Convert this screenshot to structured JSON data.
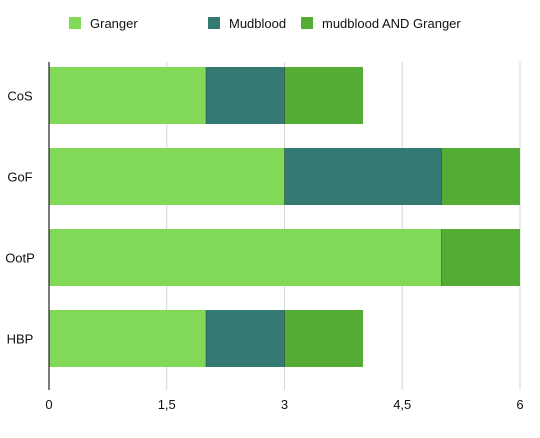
{
  "chart_data": {
    "type": "bar",
    "orientation": "horizontal",
    "stacked": true,
    "categories": [
      "CoS",
      "GoF",
      "OotP",
      "HBP"
    ],
    "series": [
      {
        "name": "Granger",
        "color": "#82d957",
        "values": [
          2,
          3,
          5,
          2
        ]
      },
      {
        "name": "Mudblood",
        "color": "#357a72",
        "values": [
          1,
          2,
          0,
          1
        ]
      },
      {
        "name": "mudblood  AND Granger",
        "color": "#54ac34",
        "values": [
          1,
          1,
          1,
          1
        ]
      }
    ],
    "xlim": [
      0,
      6
    ],
    "xticks": [
      {
        "value": 0,
        "label": "0"
      },
      {
        "value": 1.5,
        "label": "1,5"
      },
      {
        "value": 3,
        "label": "3"
      },
      {
        "value": 4.5,
        "label": "4,5"
      },
      {
        "value": 6,
        "label": "6"
      }
    ],
    "grid": true,
    "legend_position": "top",
    "title": "",
    "xlabel": "",
    "ylabel": ""
  }
}
